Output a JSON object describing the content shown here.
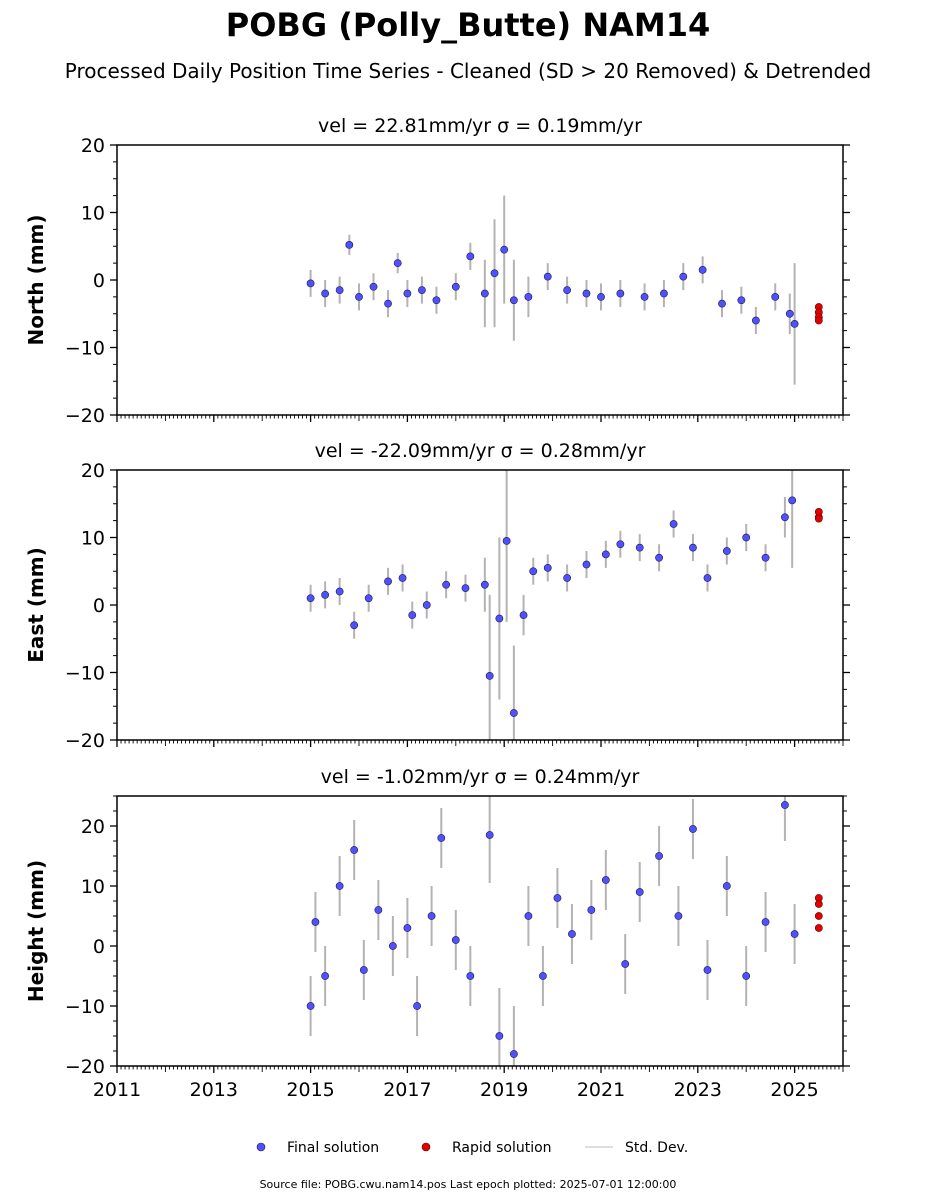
{
  "title": "POBG (Polly_Butte) NAM14",
  "subtitle": "Processed Daily Position Time Series - Cleaned (SD > 20 Removed) & Detrended",
  "footer": "Source file: POBG.cwu.nam14.pos  Last epoch plotted: 2025-07-01 12:00:00",
  "legend": {
    "final_label": "Final solution",
    "rapid_label": "Rapid solution",
    "sd_label": "Std. Dev."
  },
  "colors": {
    "final": "#5050ff",
    "final_edge": "#1a1a4d",
    "rapid": "#e00000",
    "sd_line": "#808080",
    "sd_legend": "#d3d3d3"
  },
  "chart_data": [
    {
      "type": "scatter",
      "panel_title": "vel = 22.81mm/yr   σ = 0.19mm/yr",
      "ylabel": "North (mm)",
      "ylim": [
        -20,
        20
      ],
      "yticks": [
        -20,
        -10,
        0,
        10,
        20
      ],
      "xlim": [
        2011,
        2026
      ],
      "xticks": [
        2011,
        2013,
        2015,
        2017,
        2019,
        2021,
        2023,
        2025
      ],
      "show_xtick_labels": false,
      "final_series": [
        {
          "x": 2015.0,
          "y": -0.5,
          "sd": 2.0
        },
        {
          "x": 2015.3,
          "y": -2.0,
          "sd": 2.0
        },
        {
          "x": 2015.6,
          "y": -1.5,
          "sd": 2.0
        },
        {
          "x": 2015.8,
          "y": 5.2,
          "sd": 1.5
        },
        {
          "x": 2016.0,
          "y": -2.5,
          "sd": 2.0
        },
        {
          "x": 2016.3,
          "y": -1.0,
          "sd": 2.0
        },
        {
          "x": 2016.6,
          "y": -3.5,
          "sd": 2.0
        },
        {
          "x": 2016.8,
          "y": 2.5,
          "sd": 1.5
        },
        {
          "x": 2017.0,
          "y": -2.0,
          "sd": 2.0
        },
        {
          "x": 2017.3,
          "y": -1.5,
          "sd": 2.0
        },
        {
          "x": 2017.6,
          "y": -3.0,
          "sd": 2.0
        },
        {
          "x": 2018.0,
          "y": -1.0,
          "sd": 2.0
        },
        {
          "x": 2018.3,
          "y": 3.5,
          "sd": 2.0
        },
        {
          "x": 2018.6,
          "y": -2.0,
          "sd": 5.0
        },
        {
          "x": 2018.8,
          "y": 1.0,
          "sd": 8.0
        },
        {
          "x": 2019.0,
          "y": 4.5,
          "sd": 8.0
        },
        {
          "x": 2019.2,
          "y": -3.0,
          "sd": 6.0
        },
        {
          "x": 2019.5,
          "y": -2.5,
          "sd": 3.0
        },
        {
          "x": 2019.9,
          "y": 0.5,
          "sd": 2.0
        },
        {
          "x": 2020.3,
          "y": -1.5,
          "sd": 2.0
        },
        {
          "x": 2020.7,
          "y": -2.0,
          "sd": 2.0
        },
        {
          "x": 2021.0,
          "y": -2.5,
          "sd": 2.0
        },
        {
          "x": 2021.4,
          "y": -2.0,
          "sd": 2.0
        },
        {
          "x": 2021.9,
          "y": -2.5,
          "sd": 2.0
        },
        {
          "x": 2022.3,
          "y": -2.0,
          "sd": 2.0
        },
        {
          "x": 2022.7,
          "y": 0.5,
          "sd": 2.0
        },
        {
          "x": 2023.1,
          "y": 1.5,
          "sd": 2.0
        },
        {
          "x": 2023.5,
          "y": -3.5,
          "sd": 2.0
        },
        {
          "x": 2023.9,
          "y": -3.0,
          "sd": 2.0
        },
        {
          "x": 2024.2,
          "y": -6.0,
          "sd": 2.0
        },
        {
          "x": 2024.6,
          "y": -2.5,
          "sd": 2.0
        },
        {
          "x": 2024.9,
          "y": -5.0,
          "sd": 3.0
        },
        {
          "x": 2025.0,
          "y": -6.5,
          "sd": 9.0
        }
      ],
      "rapid_series": [
        {
          "x": 2025.5,
          "y": -4.0
        },
        {
          "x": 2025.5,
          "y": -4.8
        },
        {
          "x": 2025.5,
          "y": -5.5
        },
        {
          "x": 2025.5,
          "y": -6.0
        }
      ]
    },
    {
      "type": "scatter",
      "panel_title": "vel = -22.09mm/yr   σ = 0.28mm/yr",
      "ylabel": "East (mm)",
      "ylim": [
        -20,
        20
      ],
      "yticks": [
        -20,
        -10,
        0,
        10,
        20
      ],
      "xlim": [
        2011,
        2026
      ],
      "xticks": [
        2011,
        2013,
        2015,
        2017,
        2019,
        2021,
        2023,
        2025
      ],
      "show_xtick_labels": false,
      "final_series": [
        {
          "x": 2015.0,
          "y": 1.0,
          "sd": 2.0
        },
        {
          "x": 2015.3,
          "y": 1.5,
          "sd": 2.0
        },
        {
          "x": 2015.6,
          "y": 2.0,
          "sd": 2.0
        },
        {
          "x": 2015.9,
          "y": -3.0,
          "sd": 2.0
        },
        {
          "x": 2016.2,
          "y": 1.0,
          "sd": 2.0
        },
        {
          "x": 2016.6,
          "y": 3.5,
          "sd": 2.0
        },
        {
          "x": 2016.9,
          "y": 4.0,
          "sd": 2.0
        },
        {
          "x": 2017.1,
          "y": -1.5,
          "sd": 2.0
        },
        {
          "x": 2017.4,
          "y": 0.0,
          "sd": 2.0
        },
        {
          "x": 2017.8,
          "y": 3.0,
          "sd": 2.0
        },
        {
          "x": 2018.2,
          "y": 2.5,
          "sd": 2.0
        },
        {
          "x": 2018.6,
          "y": 3.0,
          "sd": 4.0
        },
        {
          "x": 2018.7,
          "y": -10.5,
          "sd": 12.0
        },
        {
          "x": 2018.9,
          "y": -2.0,
          "sd": 12.0
        },
        {
          "x": 2019.05,
          "y": 9.5,
          "sd": 12.0
        },
        {
          "x": 2019.2,
          "y": -16.0,
          "sd": 10.0
        },
        {
          "x": 2019.4,
          "y": -1.5,
          "sd": 3.0
        },
        {
          "x": 2019.6,
          "y": 5.0,
          "sd": 2.0
        },
        {
          "x": 2019.9,
          "y": 5.5,
          "sd": 2.0
        },
        {
          "x": 2020.3,
          "y": 4.0,
          "sd": 2.0
        },
        {
          "x": 2020.7,
          "y": 6.0,
          "sd": 2.0
        },
        {
          "x": 2021.1,
          "y": 7.5,
          "sd": 2.0
        },
        {
          "x": 2021.4,
          "y": 9.0,
          "sd": 2.0
        },
        {
          "x": 2021.8,
          "y": 8.5,
          "sd": 2.0
        },
        {
          "x": 2022.2,
          "y": 7.0,
          "sd": 2.0
        },
        {
          "x": 2022.5,
          "y": 12.0,
          "sd": 2.0
        },
        {
          "x": 2022.9,
          "y": 8.5,
          "sd": 2.0
        },
        {
          "x": 2023.2,
          "y": 4.0,
          "sd": 2.0
        },
        {
          "x": 2023.6,
          "y": 8.0,
          "sd": 2.0
        },
        {
          "x": 2024.0,
          "y": 10.0,
          "sd": 2.0
        },
        {
          "x": 2024.4,
          "y": 7.0,
          "sd": 2.0
        },
        {
          "x": 2024.8,
          "y": 13.0,
          "sd": 3.0
        },
        {
          "x": 2024.95,
          "y": 15.5,
          "sd": 10.0
        }
      ],
      "rapid_series": [
        {
          "x": 2025.5,
          "y": 13.0
        },
        {
          "x": 2025.5,
          "y": 13.8
        },
        {
          "x": 2025.5,
          "y": 12.8
        }
      ]
    },
    {
      "type": "scatter",
      "panel_title": "vel = -1.02mm/yr   σ = 0.24mm/yr",
      "ylabel": "Height (mm)",
      "ylim": [
        -20,
        25
      ],
      "yticks": [
        -20,
        -10,
        0,
        10,
        20
      ],
      "xlim": [
        2011,
        2026
      ],
      "xticks": [
        2011,
        2013,
        2015,
        2017,
        2019,
        2021,
        2023,
        2025
      ],
      "xtick_labels": [
        "2011",
        "2013",
        "2015",
        "2017",
        "2019",
        "2021",
        "2023",
        "2025"
      ],
      "show_xtick_labels": true,
      "final_series": [
        {
          "x": 2015.0,
          "y": -10.0,
          "sd": 5.0
        },
        {
          "x": 2015.1,
          "y": 4.0,
          "sd": 5.0
        },
        {
          "x": 2015.3,
          "y": -5.0,
          "sd": 5.0
        },
        {
          "x": 2015.6,
          "y": 10.0,
          "sd": 5.0
        },
        {
          "x": 2015.9,
          "y": 16.0,
          "sd": 5.0
        },
        {
          "x": 2016.1,
          "y": -4.0,
          "sd": 5.0
        },
        {
          "x": 2016.4,
          "y": 6.0,
          "sd": 5.0
        },
        {
          "x": 2016.7,
          "y": 0.0,
          "sd": 5.0
        },
        {
          "x": 2017.0,
          "y": 3.0,
          "sd": 5.0
        },
        {
          "x": 2017.2,
          "y": -10.0,
          "sd": 5.0
        },
        {
          "x": 2017.5,
          "y": 5.0,
          "sd": 5.0
        },
        {
          "x": 2017.7,
          "y": 18.0,
          "sd": 5.0
        },
        {
          "x": 2018.0,
          "y": 1.0,
          "sd": 5.0
        },
        {
          "x": 2018.3,
          "y": -5.0,
          "sd": 5.0
        },
        {
          "x": 2018.7,
          "y": 18.5,
          "sd": 8.0
        },
        {
          "x": 2018.9,
          "y": -15.0,
          "sd": 8.0
        },
        {
          "x": 2019.2,
          "y": -18.0,
          "sd": 8.0
        },
        {
          "x": 2019.5,
          "y": 5.0,
          "sd": 5.0
        },
        {
          "x": 2019.8,
          "y": -5.0,
          "sd": 5.0
        },
        {
          "x": 2020.1,
          "y": 8.0,
          "sd": 5.0
        },
        {
          "x": 2020.4,
          "y": 2.0,
          "sd": 5.0
        },
        {
          "x": 2020.8,
          "y": 6.0,
          "sd": 5.0
        },
        {
          "x": 2021.1,
          "y": 11.0,
          "sd": 5.0
        },
        {
          "x": 2021.5,
          "y": -3.0,
          "sd": 5.0
        },
        {
          "x": 2021.8,
          "y": 9.0,
          "sd": 5.0
        },
        {
          "x": 2022.2,
          "y": 15.0,
          "sd": 5.0
        },
        {
          "x": 2022.6,
          "y": 5.0,
          "sd": 5.0
        },
        {
          "x": 2022.9,
          "y": 19.5,
          "sd": 5.0
        },
        {
          "x": 2023.2,
          "y": -4.0,
          "sd": 5.0
        },
        {
          "x": 2023.6,
          "y": 10.0,
          "sd": 5.0
        },
        {
          "x": 2024.0,
          "y": -5.0,
          "sd": 5.0
        },
        {
          "x": 2024.4,
          "y": 4.0,
          "sd": 5.0
        },
        {
          "x": 2024.8,
          "y": 23.5,
          "sd": 6.0
        },
        {
          "x": 2025.0,
          "y": 2.0,
          "sd": 5.0
        }
      ],
      "rapid_series": [
        {
          "x": 2025.5,
          "y": 8.0
        },
        {
          "x": 2025.5,
          "y": 7.0
        },
        {
          "x": 2025.5,
          "y": 5.0
        },
        {
          "x": 2025.5,
          "y": 3.0
        }
      ]
    }
  ]
}
